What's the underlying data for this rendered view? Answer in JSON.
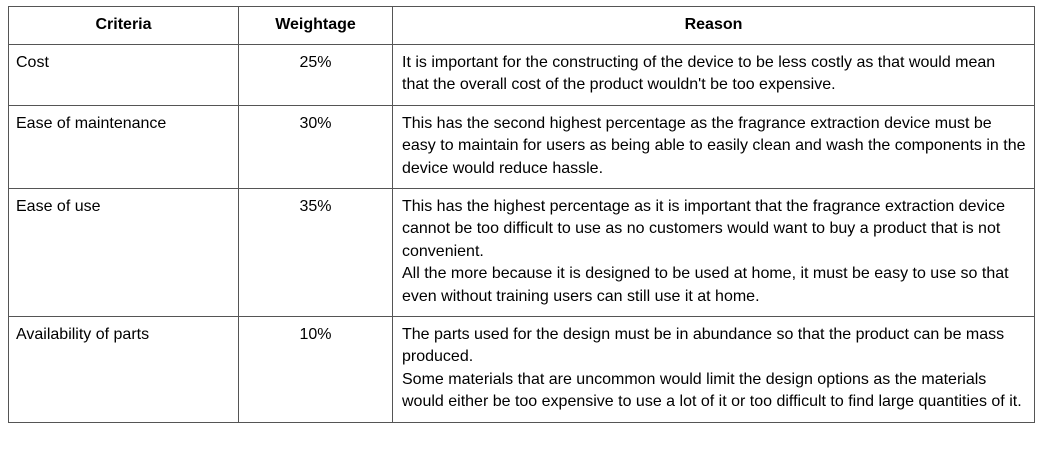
{
  "table": {
    "headers": [
      "Criteria",
      "Weightage",
      "Reason"
    ],
    "rows": [
      {
        "criteria": "Cost",
        "weightage": "25%",
        "reason": [
          "It is important for the constructing of the device to be less costly as that would mean that the overall cost of the product wouldn't be too expensive."
        ]
      },
      {
        "criteria": "Ease of maintenance",
        "weightage": "30%",
        "reason": [
          "This has the second highest percentage as the fragrance extraction device must be easy to maintain for users as being able to easily clean and wash the components in the device would reduce hassle."
        ]
      },
      {
        "criteria": "Ease of use",
        "weightage": "35%",
        "reason": [
          "This has the highest percentage as it is important that the fragrance extraction device cannot be too difficult to use as no customers would want to buy a product that is not convenient.",
          "All the more because it is designed to be used at home, it must be easy to use so that even without training users can still use it at home."
        ]
      },
      {
        "criteria": "Availability of parts",
        "weightage": "10%",
        "reason": [
          "The parts used for the design must be in abundance so that the product can be mass produced.",
          "Some materials that are uncommon would limit the design options as the materials would either be too expensive to use a lot of it or too difficult to find large quantities of it."
        ]
      }
    ]
  }
}
